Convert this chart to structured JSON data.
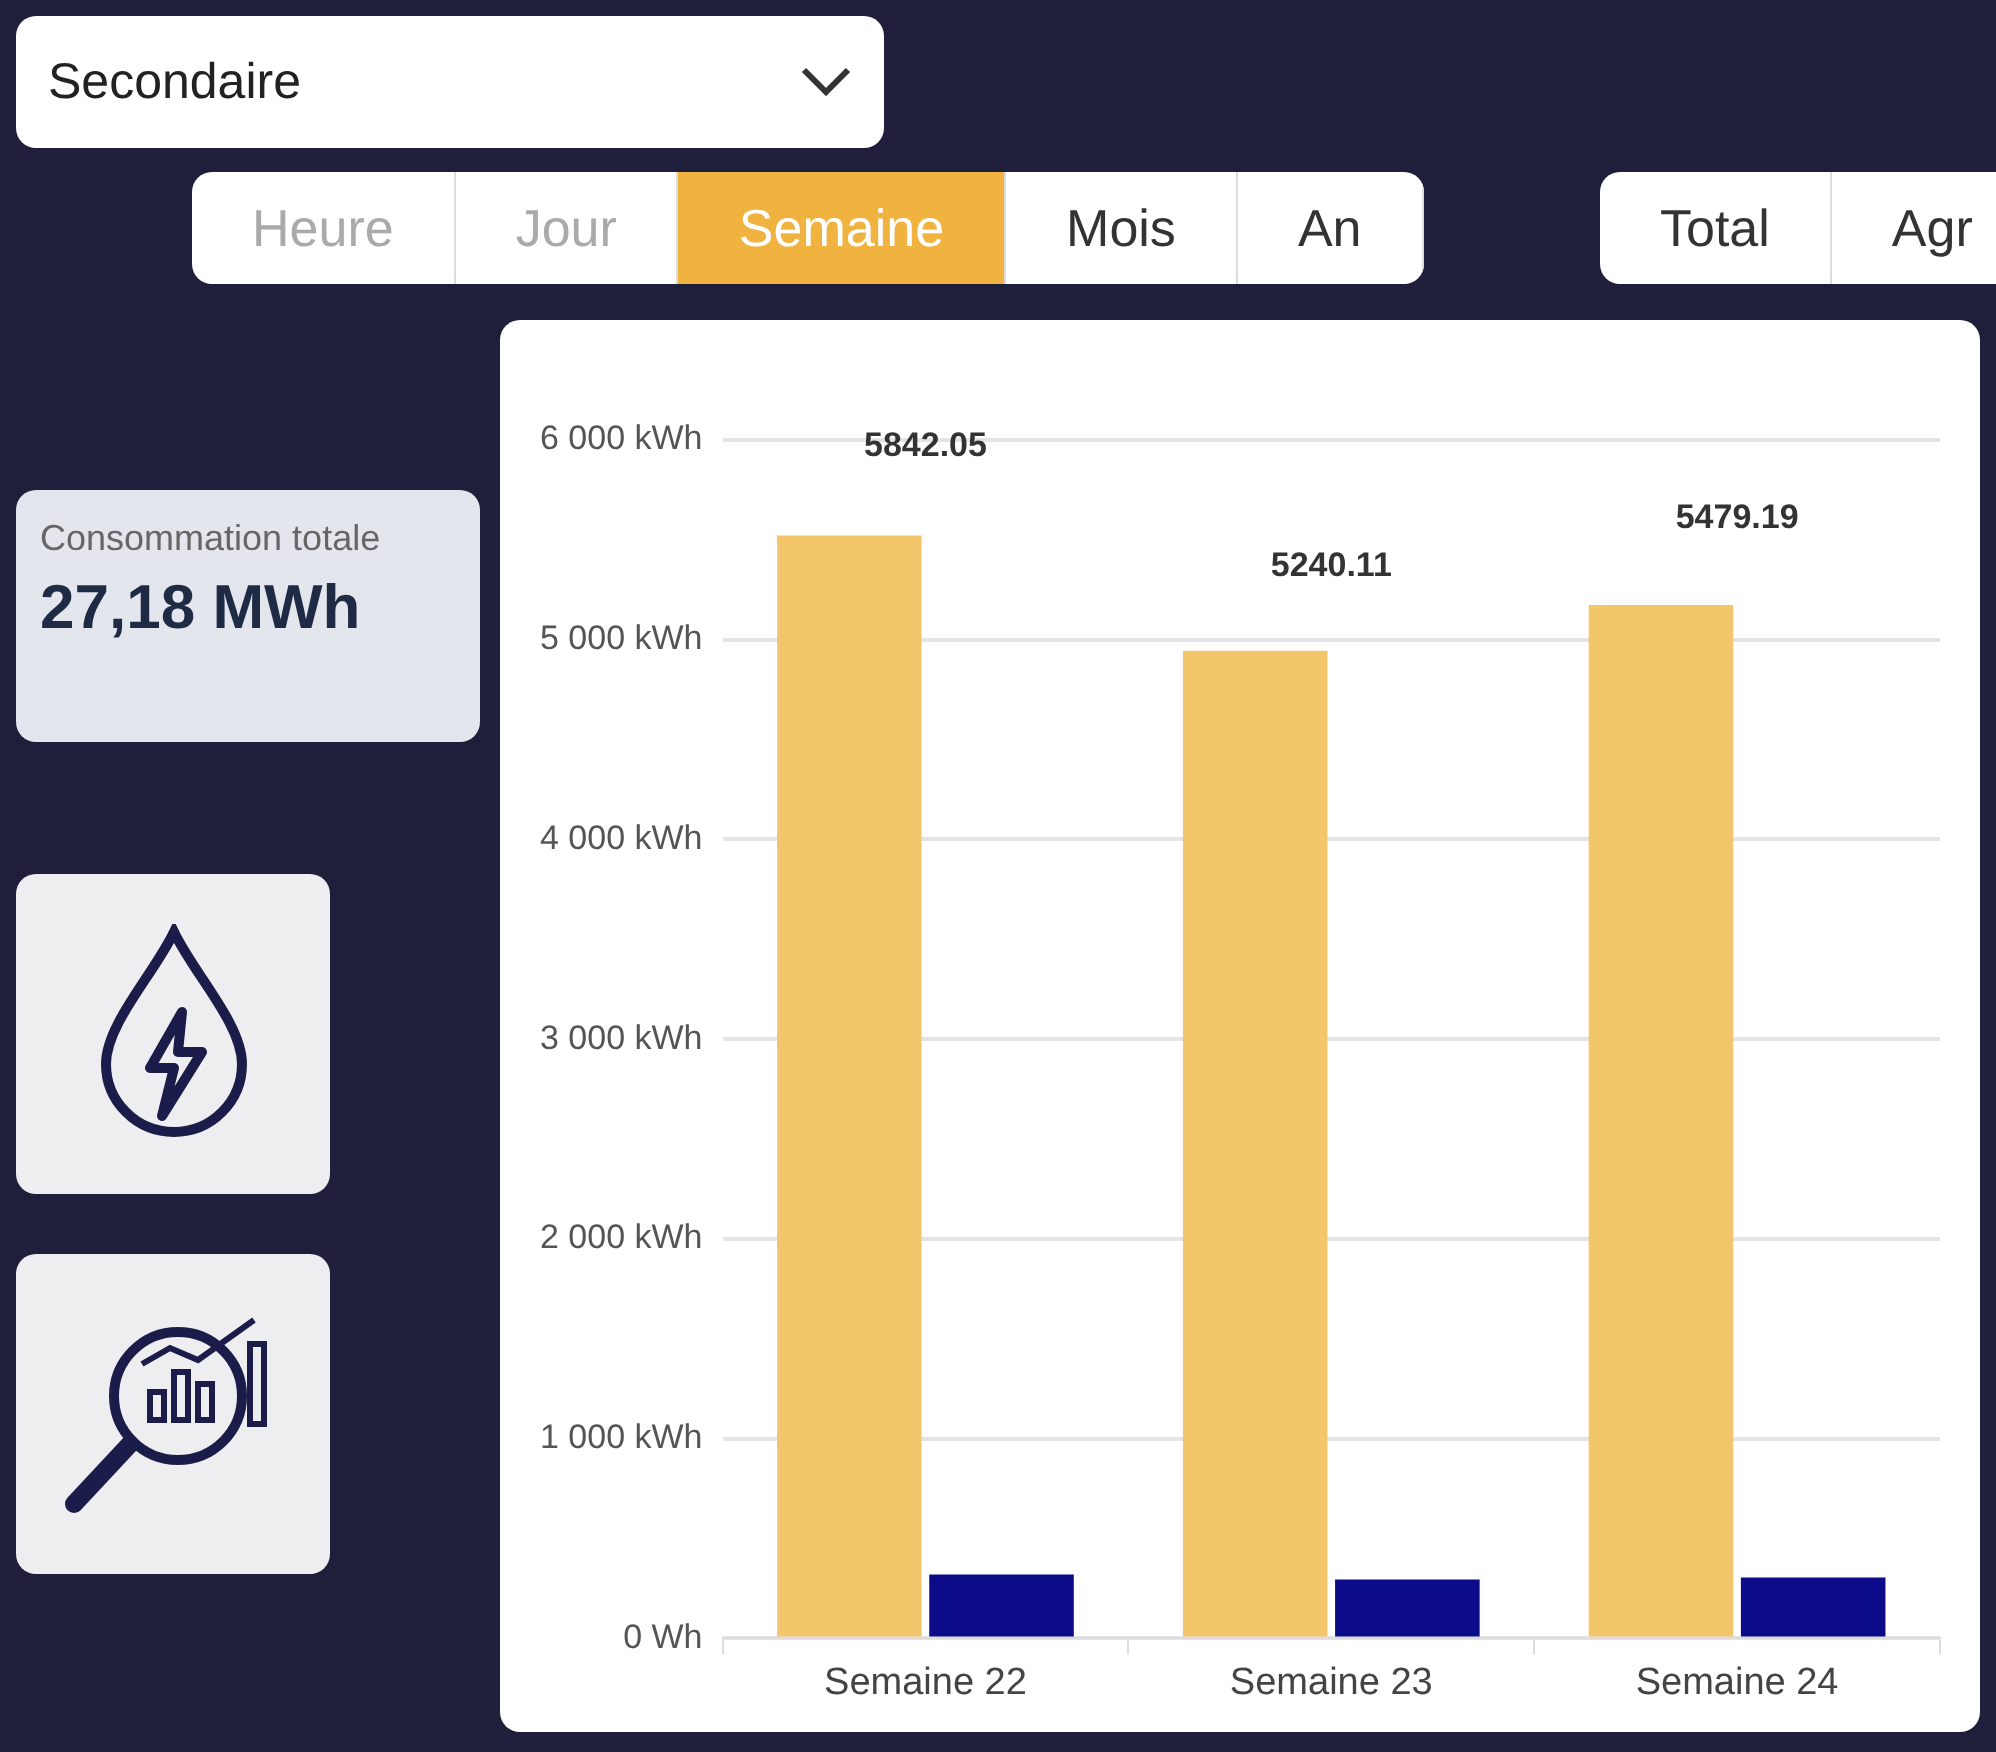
{
  "chart_data": {
    "type": "bar",
    "categories": [
      "Semaine 22",
      "Semaine 23",
      "Semaine 24"
    ],
    "series": [
      {
        "color": "#f3c66b",
        "values": [
          5522.05,
          4945.11,
          5174.19
        ]
      },
      {
        "color": "#0c0c8a",
        "values": [
          320,
          295,
          305
        ]
      }
    ],
    "ylim": [
      0,
      6000
    ],
    "yticks": [
      {
        "value": 0,
        "label": "0 Wh"
      },
      {
        "value": 1000,
        "label": "1 000 kWh"
      },
      {
        "value": 2000,
        "label": "2 000 kWh"
      },
      {
        "value": 3000,
        "label": "3 000 kWh"
      },
      {
        "value": 4000,
        "label": "4 000 kWh"
      },
      {
        "value": 5000,
        "label": "5 000 kWh"
      },
      {
        "value": 6000,
        "label": "6 000 kWh"
      }
    ],
    "totals": [
      "5842.05",
      "5240.11",
      "5479.19"
    ],
    "grid": "y",
    "legend": false,
    "annotations": [
      "Secondaire",
      "Heure",
      "Jour",
      "Semaine",
      "Mois",
      "An",
      "Total",
      "Agr",
      "Consommation totale",
      "27,18 MWh"
    ]
  }
}
